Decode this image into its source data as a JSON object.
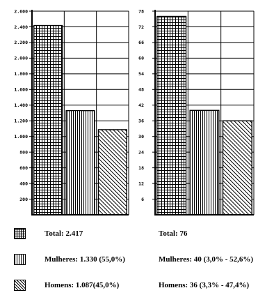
{
  "chart_data": [
    {
      "type": "bar",
      "categories": [
        "Total",
        "Mulheres",
        "Homens"
      ],
      "values": [
        2417,
        1330,
        1087
      ],
      "ylim": [
        0,
        2600
      ],
      "yticks": [
        200,
        400,
        600,
        800,
        1000,
        1200,
        1400,
        1600,
        1800,
        2000,
        2200,
        2400,
        2600
      ],
      "ytick_labels": [
        "200",
        "400",
        "600",
        "800",
        "1.000",
        "1.200",
        "1.400",
        "1.600",
        "1.800",
        "2.000",
        "2.200",
        "2.400",
        "2.600"
      ],
      "grid": true,
      "patterns": [
        "grid",
        "vertical",
        "diagonal"
      ]
    },
    {
      "type": "bar",
      "categories": [
        "Total",
        "Mulheres",
        "Homens"
      ],
      "values": [
        76,
        40,
        36
      ],
      "ylim": [
        0,
        78
      ],
      "yticks": [
        6,
        12,
        18,
        24,
        30,
        36,
        42,
        48,
        54,
        60,
        66,
        72,
        78
      ],
      "ytick_labels": [
        "6",
        "12",
        "18",
        "24",
        "30",
        "36",
        "42",
        "48",
        "54",
        "60",
        "66",
        "72",
        "78"
      ],
      "grid": true,
      "patterns": [
        "grid",
        "vertical",
        "diagonal"
      ]
    }
  ],
  "legend": {
    "left": [
      {
        "pattern": "grid",
        "label": "Total: 2.417"
      },
      {
        "pattern": "vertical",
        "label": "Mulheres: 1.330 (55,0%)"
      },
      {
        "pattern": "diagonal",
        "label": "Homens: 1.087(45,0%)"
      }
    ],
    "right": [
      {
        "label": "Total: 76"
      },
      {
        "label": "Mulheres: 40 (3,0% - 52,6%)"
      },
      {
        "label": "Homens: 36 (3,3% - 47,4%)"
      }
    ]
  }
}
